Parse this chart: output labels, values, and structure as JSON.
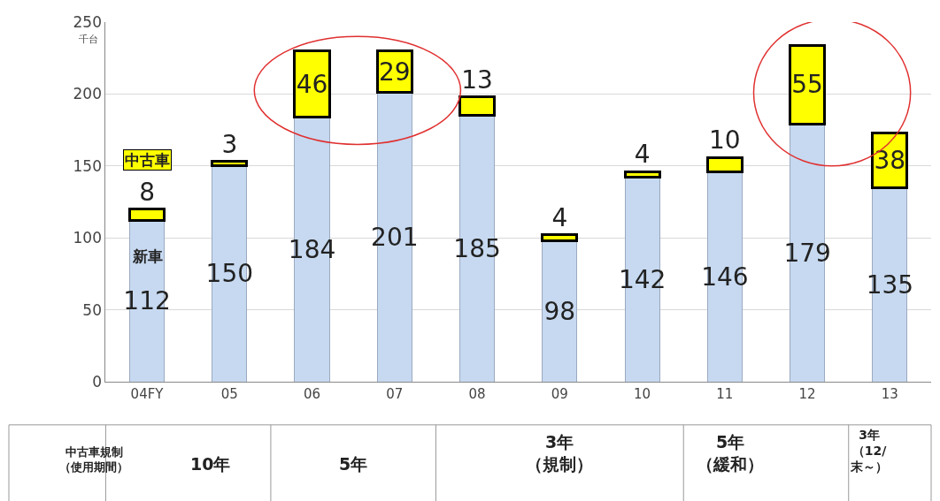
{
  "chart_data": {
    "type": "bar",
    "stacked": true,
    "ylabel": "千台",
    "categories": [
      "04FY",
      "05",
      "06",
      "07",
      "08",
      "09",
      "10",
      "11",
      "12",
      "13"
    ],
    "series": [
      {
        "name": "新車",
        "color": "#c6d9f0",
        "values": [
          112,
          150,
          184,
          201,
          185,
          98,
          142,
          146,
          179,
          135
        ]
      },
      {
        "name": "中古車",
        "color": "#ffff00",
        "values": [
          8,
          3,
          46,
          29,
          13,
          4,
          4,
          10,
          55,
          38
        ]
      }
    ],
    "ylim": [
      0,
      250
    ],
    "yticks": [
      0,
      50,
      100,
      150,
      200,
      250
    ],
    "grid": "y",
    "legend": false,
    "data_labels": true,
    "annotations": [
      "中古車規制（使用期間）",
      "10年",
      "5年",
      "3年（規制）",
      "5年（緩和）",
      "3年（12/末～）"
    ]
  }
}
